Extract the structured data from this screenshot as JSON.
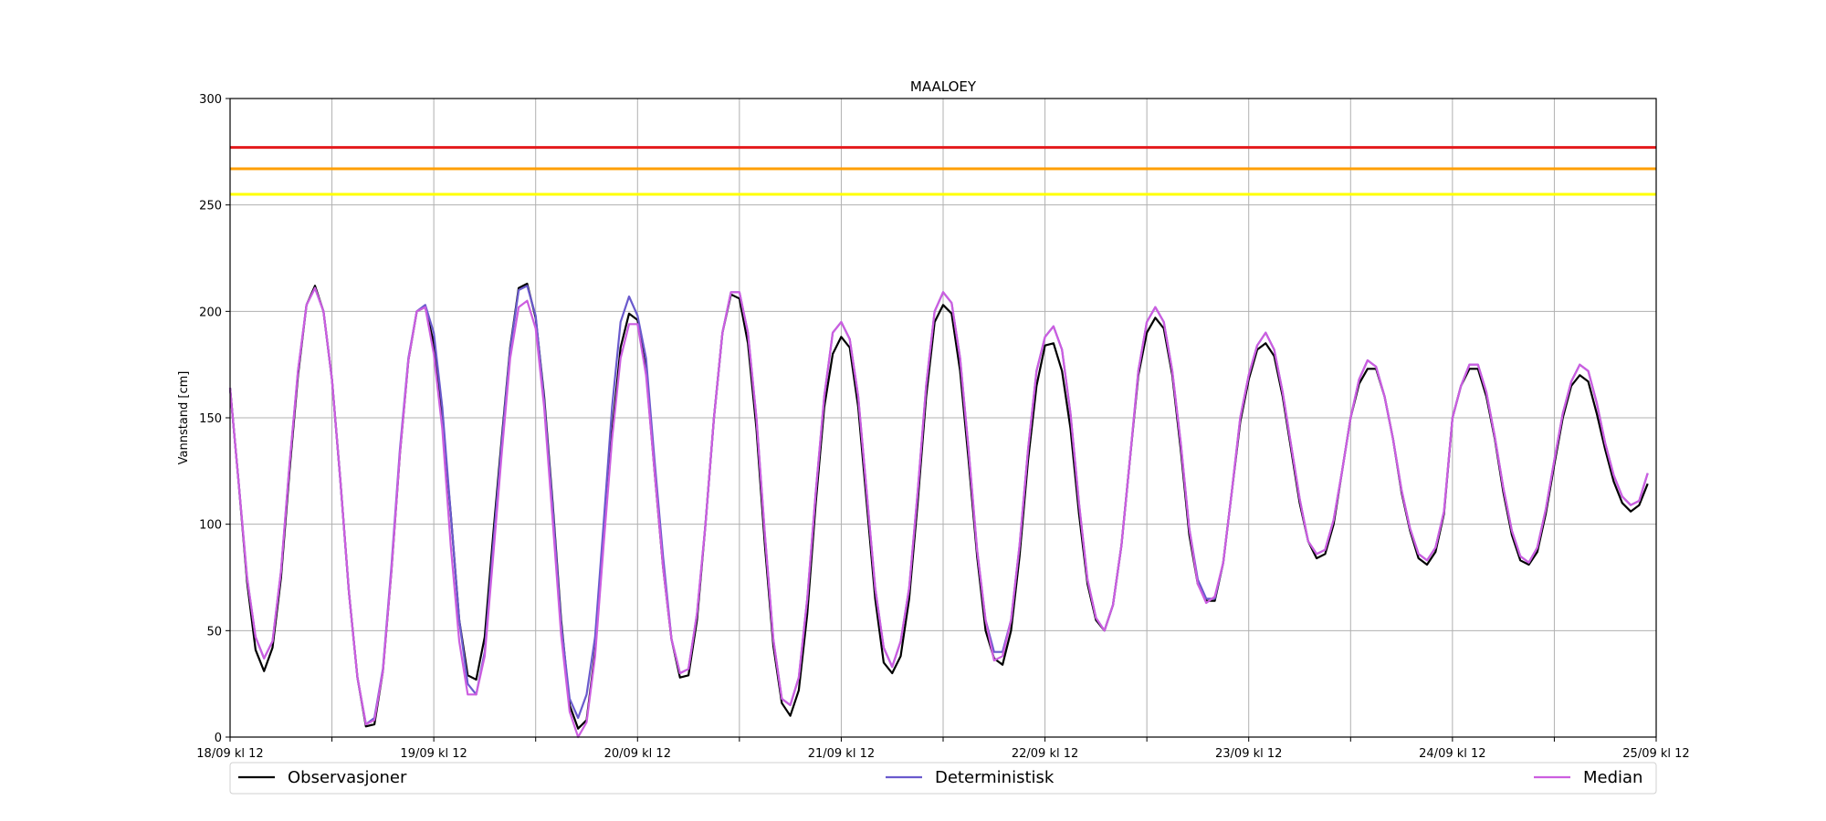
{
  "chart_data": {
    "type": "line",
    "title": "MAALOEY",
    "xlabel": "",
    "ylabel": "Vannstand [cm]",
    "xlim": [
      "18/09 12:00",
      "25/09 12:00"
    ],
    "ylim": [
      0,
      300
    ],
    "yticks": [
      0,
      50,
      100,
      150,
      200,
      250,
      300
    ],
    "xtick_labels": [
      "18/09 kl 12",
      "19/09 kl 12",
      "20/09 kl 12",
      "21/09 kl 12",
      "22/09 kl 12",
      "23/09 kl 12",
      "24/09 kl 12",
      "25/09 kl 12"
    ],
    "grid": true,
    "legend_position": "bottom",
    "x_start": "18/09 12:00",
    "x_step_hours": 1,
    "thresholds": [
      {
        "value": 277,
        "color": "#e41a1c"
      },
      {
        "value": 267,
        "color": "#ff9f00"
      },
      {
        "value": 255,
        "color": "#ffff00"
      }
    ],
    "series": [
      {
        "name": "Observasjoner",
        "color": "#000000",
        "values": [
          164,
          120,
          73,
          41,
          31,
          42,
          75,
          125,
          170,
          203,
          212,
          200,
          168,
          120,
          68,
          28,
          5,
          6,
          31,
          78,
          133,
          177,
          200,
          202,
          185,
          150,
          105,
          55,
          29,
          27,
          47,
          95,
          140,
          183,
          211,
          213,
          197,
          160,
          110,
          55,
          15,
          4,
          8,
          40,
          92,
          143,
          183,
          199,
          196,
          172,
          125,
          80,
          46,
          28,
          29,
          55,
          100,
          150,
          190,
          208,
          206,
          185,
          145,
          90,
          43,
          16,
          10,
          22,
          58,
          110,
          155,
          180,
          188,
          183,
          155,
          110,
          65,
          35,
          30,
          38,
          65,
          110,
          160,
          195,
          203,
          199,
          172,
          130,
          85,
          50,
          37,
          34,
          50,
          85,
          130,
          165,
          184,
          185,
          172,
          145,
          105,
          72,
          55,
          50,
          62,
          90,
          130,
          170,
          190,
          197,
          192,
          170,
          135,
          95,
          72,
          64,
          64,
          82,
          115,
          148,
          168,
          182,
          185,
          179,
          160,
          135,
          110,
          92,
          84,
          86,
          100,
          125,
          150,
          166,
          173,
          173,
          160,
          140,
          115,
          97,
          84,
          81,
          87,
          105,
          150,
          165,
          173,
          173,
          160,
          140,
          115,
          95,
          83,
          81,
          87,
          105,
          128,
          150,
          165,
          170,
          167,
          152,
          135,
          120,
          110,
          106,
          109,
          119
        ]
      },
      {
        "name": "Deterministisk",
        "color": "#6a5acd",
        "values": [
          164,
          120,
          75,
          47,
          37,
          45,
          78,
          128,
          172,
          203,
          211,
          200,
          168,
          120,
          68,
          28,
          6,
          9,
          32,
          80,
          135,
          178,
          200,
          203,
          190,
          155,
          105,
          55,
          25,
          20,
          40,
          90,
          138,
          182,
          210,
          212,
          198,
          158,
          108,
          53,
          18,
          9,
          20,
          47,
          100,
          155,
          195,
          207,
          198,
          178,
          130,
          85,
          46,
          30,
          32,
          58,
          100,
          150,
          190,
          209,
          209,
          190,
          150,
          95,
          46,
          18,
          15,
          28,
          65,
          115,
          160,
          190,
          195,
          187,
          160,
          115,
          70,
          42,
          33,
          45,
          70,
          115,
          165,
          200,
          209,
          204,
          178,
          135,
          88,
          55,
          40,
          40,
          55,
          90,
          135,
          172,
          188,
          193,
          182,
          152,
          110,
          74,
          56,
          50,
          62,
          90,
          130,
          172,
          195,
          202,
          195,
          172,
          138,
          98,
          74,
          65,
          65,
          82,
          115,
          150,
          170,
          184,
          190,
          182,
          162,
          137,
          112,
          92,
          86,
          88,
          102,
          125,
          150,
          168,
          177,
          174,
          160,
          140,
          116,
          98,
          86,
          83,
          89,
          106,
          150,
          165,
          175,
          175,
          162,
          141,
          117,
          97,
          85,
          82,
          89,
          107,
          130,
          152,
          167,
          175,
          172,
          157,
          138,
          123,
          113,
          109,
          111,
          124
        ]
      },
      {
        "name": "Median",
        "color": "#cc5ee0",
        "values": [
          164,
          120,
          75,
          47,
          37,
          45,
          78,
          128,
          172,
          203,
          211,
          200,
          168,
          120,
          68,
          28,
          6,
          8,
          31,
          78,
          133,
          177,
          200,
          202,
          180,
          145,
          90,
          45,
          20,
          20,
          38,
          85,
          133,
          178,
          202,
          205,
          192,
          155,
          102,
          48,
          12,
          0,
          7,
          38,
          90,
          140,
          178,
          194,
          194,
          170,
          125,
          80,
          46,
          30,
          32,
          58,
          100,
          150,
          190,
          209,
          209,
          190,
          150,
          95,
          46,
          18,
          15,
          28,
          65,
          115,
          160,
          190,
          195,
          187,
          160,
          115,
          70,
          42,
          33,
          45,
          70,
          115,
          165,
          200,
          209,
          204,
          178,
          135,
          88,
          55,
          36,
          38,
          55,
          90,
          135,
          172,
          188,
          193,
          182,
          152,
          110,
          74,
          56,
          50,
          62,
          90,
          130,
          172,
          195,
          202,
          195,
          172,
          138,
          98,
          72,
          63,
          66,
          82,
          115,
          150,
          170,
          184,
          190,
          182,
          162,
          137,
          112,
          92,
          86,
          88,
          102,
          125,
          150,
          168,
          177,
          174,
          160,
          140,
          116,
          98,
          86,
          83,
          89,
          106,
          150,
          165,
          175,
          175,
          162,
          141,
          117,
          97,
          85,
          82,
          89,
          107,
          130,
          152,
          167,
          175,
          172,
          157,
          138,
          123,
          113,
          109,
          111,
          124
        ]
      }
    ]
  }
}
